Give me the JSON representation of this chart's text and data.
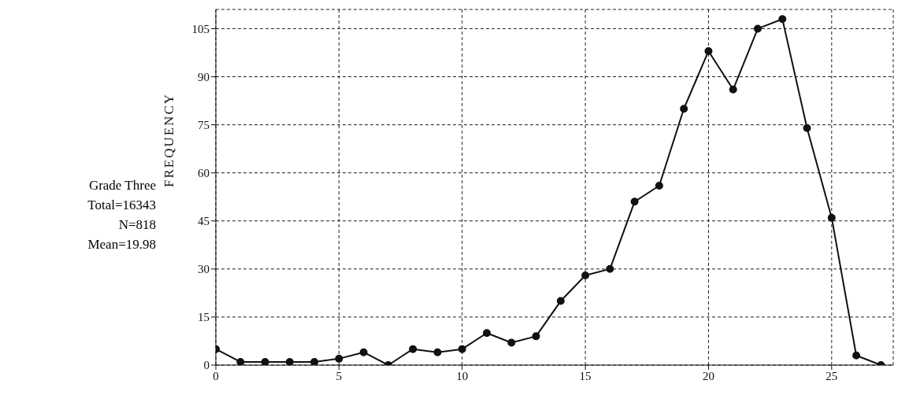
{
  "chart_data": {
    "type": "line",
    "ylabel": "FREQUENCY",
    "annotations": [
      "Grade Three",
      "Total=16343",
      "N=818",
      "Mean=19.98"
    ],
    "x": [
      0,
      1,
      2,
      3,
      4,
      5,
      6,
      7,
      8,
      9,
      10,
      11,
      12,
      13,
      14,
      15,
      16,
      17,
      18,
      19,
      20,
      21,
      22,
      23,
      24,
      25,
      26,
      27
    ],
    "series": [
      {
        "color": "#111111",
        "values": [
          5,
          1,
          1,
          1,
          1,
          2,
          4,
          0,
          5,
          4,
          5,
          10,
          7,
          9,
          20,
          28,
          30,
          51,
          56,
          80,
          98,
          86,
          105,
          108,
          74,
          46,
          3,
          0
        ]
      }
    ],
    "xlim": [
      0,
      27.5
    ],
    "xticks": [
      0,
      5,
      10,
      15,
      20,
      25
    ],
    "ylim": [
      0,
      111
    ],
    "yticks": [
      0,
      15,
      30,
      45,
      60,
      75,
      90,
      105
    ],
    "grid": true,
    "marker": "circle",
    "line_style": "solid"
  }
}
